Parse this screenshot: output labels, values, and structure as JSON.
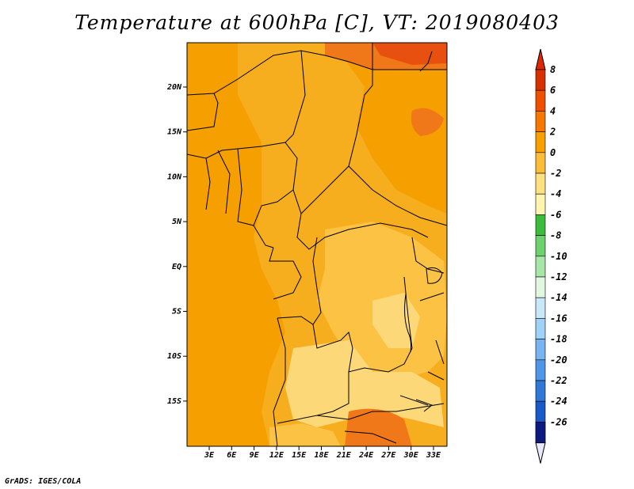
{
  "title": "Temperature at 600hPa [C], VT: 2019080403",
  "credit": "GrADS: IGES/COLA",
  "map": {
    "lat_labels": [
      "20N",
      "15N",
      "10N",
      "5N",
      "EQ",
      "5S",
      "10S",
      "15S"
    ],
    "lon_labels": [
      "3E",
      "6E",
      "9E",
      "12E",
      "15E",
      "18E",
      "21E",
      "24E",
      "27E",
      "30E",
      "33E"
    ]
  },
  "colorbar": {
    "labels": [
      "8",
      "6",
      "4",
      "2",
      "0",
      "-2",
      "-4",
      "-6",
      "-8",
      "-10",
      "-12",
      "-14",
      "-16",
      "-18",
      "-20",
      "-22",
      "-24",
      "-26"
    ],
    "colors": [
      "#d73000",
      "#ee5000",
      "#f77800",
      "#f9a000",
      "#fbbd38",
      "#fde080",
      "#fff5b0",
      "#3cbc3c",
      "#6ed06e",
      "#a8e6a8",
      "#e0f8e0",
      "#c8e8f8",
      "#a0d2f8",
      "#78b4f0",
      "#5096e8",
      "#2f78d8",
      "#1a5ac8",
      "#0c3eb0",
      "#0c1a80"
    ],
    "overflow_high": "#e02800",
    "overflow_low": "#e8e8ff"
  },
  "field_colors": {
    "warm": "#f5a000",
    "mid": "#f7ae1e",
    "cool": "#fbc244",
    "coolest": "#fdd878",
    "hot": "#f07818",
    "hottest": "#e85010"
  }
}
